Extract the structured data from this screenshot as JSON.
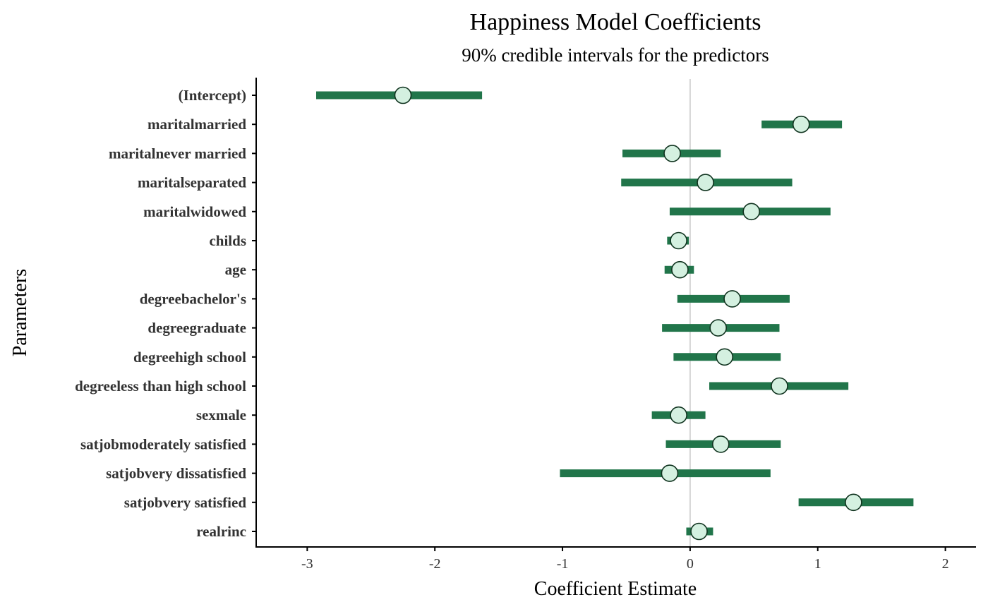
{
  "chart_data": {
    "type": "interval",
    "title": "Happiness Model Coefficients",
    "subtitle": "90% credible intervals for the predictors",
    "xlabel": "Coefficient Estimate",
    "ylabel": "Parameters",
    "xlim": [
      -3.4,
      2.24
    ],
    "xticks": [
      -3,
      -2,
      -1,
      0,
      1,
      2
    ],
    "xtick_labels": [
      "-3",
      "-2",
      "-1",
      "0",
      "1",
      "2"
    ],
    "reference_line": 0,
    "grid": false,
    "colors": {
      "interval": "#21754a",
      "point_fill": "#d4f0e0",
      "point_stroke": "#10331f",
      "reference_line": "#d9d9d9",
      "axis": "#000000"
    },
    "parameters": [
      {
        "name": "(Intercept)",
        "estimate": -2.25,
        "low": -2.93,
        "high": -1.63
      },
      {
        "name": "maritalmarried",
        "estimate": 0.87,
        "low": 0.56,
        "high": 1.19
      },
      {
        "name": "maritalnever married",
        "estimate": -0.14,
        "low": -0.53,
        "high": 0.24
      },
      {
        "name": "maritalseparated",
        "estimate": 0.12,
        "low": -0.54,
        "high": 0.8
      },
      {
        "name": "maritalwidowed",
        "estimate": 0.48,
        "low": -0.16,
        "high": 1.1
      },
      {
        "name": "childs",
        "estimate": -0.09,
        "low": -0.18,
        "high": -0.01
      },
      {
        "name": "age",
        "estimate": -0.08,
        "low": -0.2,
        "high": 0.03
      },
      {
        "name": "degreebachelor's",
        "estimate": 0.33,
        "low": -0.1,
        "high": 0.78
      },
      {
        "name": "degreegraduate",
        "estimate": 0.22,
        "low": -0.22,
        "high": 0.7
      },
      {
        "name": "degreehigh school",
        "estimate": 0.27,
        "low": -0.13,
        "high": 0.71
      },
      {
        "name": "degreeless than high school",
        "estimate": 0.7,
        "low": 0.15,
        "high": 1.24
      },
      {
        "name": "sexmale",
        "estimate": -0.09,
        "low": -0.3,
        "high": 0.12
      },
      {
        "name": "satjobmoderately satisfied",
        "estimate": 0.24,
        "low": -0.19,
        "high": 0.71
      },
      {
        "name": "satjobvery dissatisfied",
        "estimate": -0.16,
        "low": -1.02,
        "high": 0.63
      },
      {
        "name": "satjobvery satisfied",
        "estimate": 1.28,
        "low": 0.85,
        "high": 1.75
      },
      {
        "name": "realrinc",
        "estimate": 0.07,
        "low": -0.03,
        "high": 0.18
      }
    ]
  }
}
